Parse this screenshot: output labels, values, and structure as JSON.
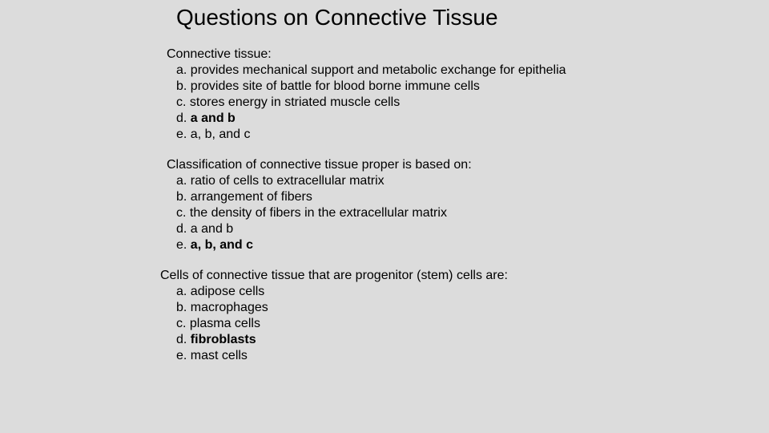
{
  "background_color": "#dcdcdc",
  "text_color": "#000000",
  "title_fontsize": 28,
  "body_fontsize": 16,
  "title": "Questions on Connective Tissue",
  "questions": [
    {
      "stem": "Connective tissue:",
      "options": [
        {
          "letter": "a.",
          "text": "provides mechanical support and metabolic exchange for epithelia",
          "bold": false
        },
        {
          "letter": "b.",
          "text": "provides site of battle for blood borne immune cells",
          "bold": false
        },
        {
          "letter": "c.",
          "text": "stores energy in striated muscle cells",
          "bold": false
        },
        {
          "letter": "d.",
          "text": "a and b",
          "bold": true
        },
        {
          "letter": "e.",
          "text": "a, b, and c",
          "bold": false
        }
      ]
    },
    {
      "stem": "Classification of connective tissue proper is based on:",
      "options": [
        {
          "letter": "a.",
          "text": "ratio of cells to extracellular matrix",
          "bold": false
        },
        {
          "letter": "b.",
          "text": "arrangement of fibers",
          "bold": false
        },
        {
          "letter": "c.",
          "text": "the density of fibers in the extracellular matrix",
          "bold": false
        },
        {
          "letter": "d.",
          "text": "a and b",
          "bold": false
        },
        {
          "letter": "e.",
          "text": "a, b, and c",
          "bold": true
        }
      ]
    },
    {
      "stem": "Cells of connective tissue that are progenitor (stem) cells are:",
      "options": [
        {
          "letter": "a.",
          "text": "adipose cells",
          "bold": false
        },
        {
          "letter": "b.",
          "text": "macrophages",
          "bold": false
        },
        {
          "letter": "c.",
          "text": "plasma cells",
          "bold": false
        },
        {
          "letter": "d.",
          "text": "fibroblasts",
          "bold": true
        },
        {
          "letter": "e.",
          "text": "mast cells",
          "bold": false
        }
      ]
    }
  ]
}
